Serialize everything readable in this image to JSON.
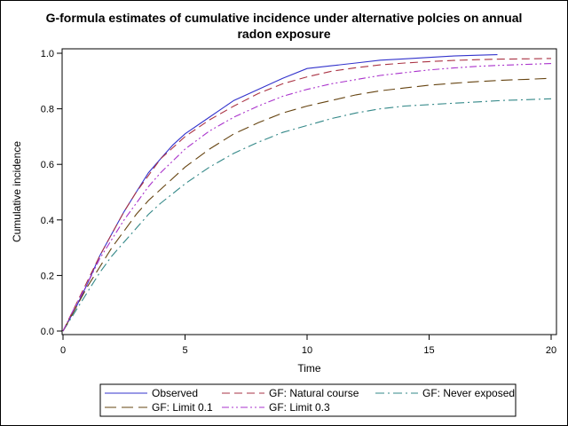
{
  "chart_data": {
    "type": "line",
    "title_line1": "G-formula estimates of cumulative incidence under alternative polcies on annual",
    "title_line2": "radon exposure",
    "xlabel": "Time",
    "ylabel": "Cumulative incidence",
    "xlim": [
      0,
      20
    ],
    "ylim": [
      0,
      1
    ],
    "xticks": [
      0,
      5,
      10,
      15,
      20
    ],
    "xtick_labels": [
      "0",
      "5",
      "10",
      "15",
      "20"
    ],
    "yticks": [
      0,
      0.2,
      0.4,
      0.6,
      0.8,
      1.0
    ],
    "ytick_labels": [
      "0.0",
      "0.2",
      "0.4",
      "0.6",
      "0.8",
      "1.0"
    ],
    "grid": false,
    "legend_position": "bottom",
    "x": [
      0,
      0.5,
      1,
      1.5,
      2,
      2.5,
      3,
      3.5,
      4,
      5,
      6,
      7,
      8,
      9,
      10,
      11,
      12,
      13,
      14,
      15,
      16,
      17,
      18,
      19,
      20
    ],
    "series": [
      {
        "name": "Observed",
        "color": "#3333cc",
        "dash": "",
        "x": [
          0,
          0.5,
          1,
          1.5,
          2,
          2.5,
          3,
          3.5,
          4,
          4.5,
          5,
          6,
          7,
          8,
          9,
          10,
          11,
          12,
          13,
          14,
          15,
          16,
          17,
          17.8
        ],
        "values": [
          0,
          0.08,
          0.17,
          0.27,
          0.35,
          0.43,
          0.5,
          0.57,
          0.62,
          0.67,
          0.71,
          0.77,
          0.83,
          0.87,
          0.91,
          0.945,
          0.955,
          0.965,
          0.975,
          0.98,
          0.985,
          0.99,
          0.993,
          0.995
        ]
      },
      {
        "name": "GF: Natural course",
        "color": "#aa3344",
        "dash": "9 5",
        "values": [
          0,
          0.09,
          0.18,
          0.27,
          0.35,
          0.43,
          0.5,
          0.56,
          0.62,
          0.7,
          0.76,
          0.81,
          0.855,
          0.89,
          0.915,
          0.935,
          0.948,
          0.958,
          0.965,
          0.97,
          0.974,
          0.977,
          0.979,
          0.98,
          0.981
        ]
      },
      {
        "name": "GF: Never exposed",
        "color": "#338888",
        "dash": "10 4 2 4",
        "values": [
          0,
          0.07,
          0.14,
          0.21,
          0.27,
          0.32,
          0.37,
          0.42,
          0.46,
          0.53,
          0.59,
          0.64,
          0.68,
          0.715,
          0.74,
          0.765,
          0.785,
          0.8,
          0.81,
          0.815,
          0.82,
          0.825,
          0.83,
          0.833,
          0.836
        ]
      },
      {
        "name": "GF: Limit 0.1",
        "color": "#664411",
        "dash": "13 6",
        "values": [
          0,
          0.08,
          0.16,
          0.23,
          0.3,
          0.36,
          0.42,
          0.47,
          0.51,
          0.59,
          0.655,
          0.71,
          0.75,
          0.785,
          0.81,
          0.83,
          0.85,
          0.865,
          0.875,
          0.885,
          0.892,
          0.898,
          0.903,
          0.906,
          0.91
        ]
      },
      {
        "name": "GF: Limit 0.3",
        "color": "#aa33cc",
        "dash": "8 3 2 3 2 3",
        "values": [
          0,
          0.09,
          0.17,
          0.26,
          0.33,
          0.4,
          0.46,
          0.52,
          0.57,
          0.655,
          0.72,
          0.77,
          0.81,
          0.845,
          0.87,
          0.89,
          0.905,
          0.92,
          0.93,
          0.94,
          0.947,
          0.953,
          0.957,
          0.96,
          0.963
        ]
      }
    ]
  }
}
